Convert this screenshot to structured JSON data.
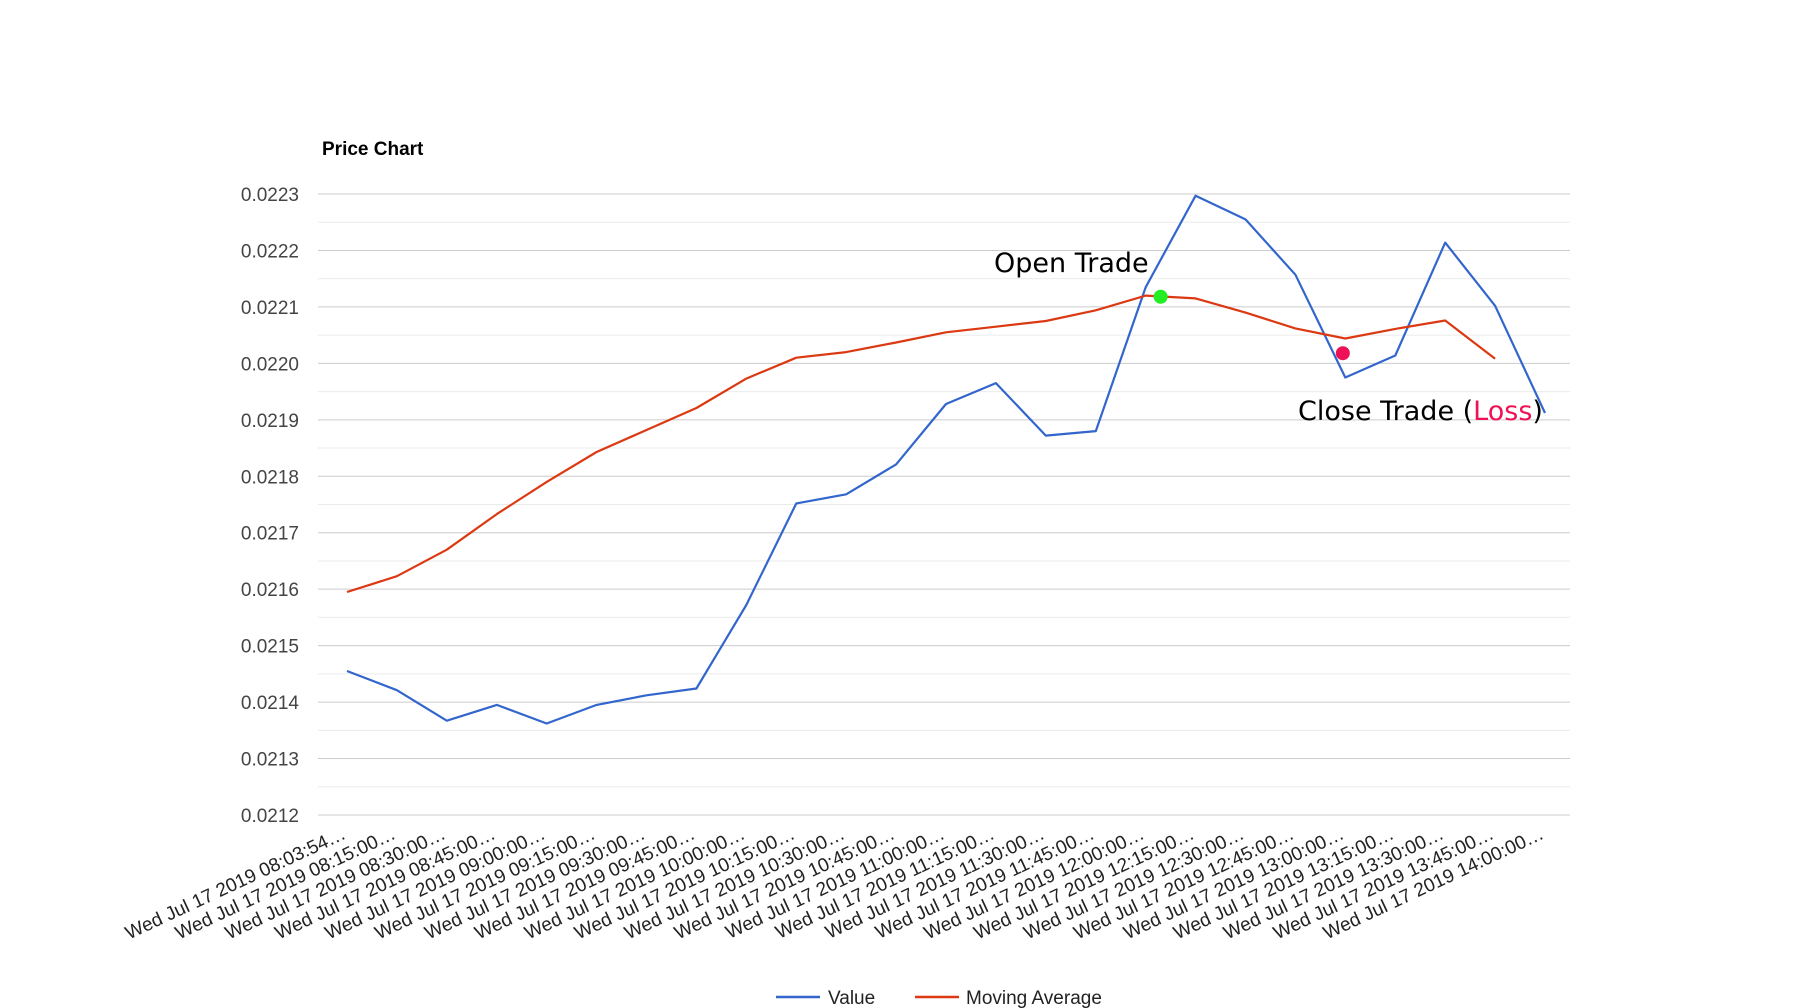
{
  "chart_data": {
    "type": "line",
    "title": "Price Chart",
    "xlabel": "",
    "ylabel": "",
    "ylim": [
      0.0212,
      0.0223
    ],
    "yticks": [
      "0.0223",
      "0.0222",
      "0.0221",
      "0.0220",
      "0.0219",
      "0.0218",
      "0.0217",
      "0.0216",
      "0.0215",
      "0.0214",
      "0.0213",
      "0.0212"
    ],
    "grid": true,
    "legend_position": "bottom",
    "categories": [
      "Wed Jul 17 2019 08:03:54…",
      "Wed Jul 17 2019 08:15:00…",
      "Wed Jul 17 2019 08:30:00…",
      "Wed Jul 17 2019 08:45:00…",
      "Wed Jul 17 2019 09:00:00…",
      "Wed Jul 17 2019 09:15:00…",
      "Wed Jul 17 2019 09:30:00…",
      "Wed Jul 17 2019 09:45:00…",
      "Wed Jul 17 2019 10:00:00…",
      "Wed Jul 17 2019 10:15:00…",
      "Wed Jul 17 2019 10:30:00…",
      "Wed Jul 17 2019 10:45:00…",
      "Wed Jul 17 2019 11:00:00…",
      "Wed Jul 17 2019 11:15:00…",
      "Wed Jul 17 2019 11:30:00…",
      "Wed Jul 17 2019 11:45:00…",
      "Wed Jul 17 2019 12:00:00…",
      "Wed Jul 17 2019 12:15:00…",
      "Wed Jul 17 2019 12:30:00…",
      "Wed Jul 17 2019 12:45:00…",
      "Wed Jul 17 2019 13:00:00…",
      "Wed Jul 17 2019 13:15:00…",
      "Wed Jul 17 2019 13:30:00…",
      "Wed Jul 17 2019 13:45:00…",
      "Wed Jul 17 2019 14:00:00…"
    ],
    "series": [
      {
        "name": "Value",
        "color": "#3366cc",
        "values": [
          0.021455,
          0.021421,
          0.021367,
          0.021395,
          0.021362,
          0.021395,
          0.021412,
          0.021424,
          0.021572,
          0.021752,
          0.021768,
          0.021821,
          0.021928,
          0.021965,
          0.021872,
          0.02188,
          0.022135,
          0.022297,
          0.022255,
          0.022157,
          0.021975,
          0.022014,
          0.022214,
          0.022102,
          0.021912
        ]
      },
      {
        "name": "Moving Average",
        "color": "#dc3912",
        "values": [
          0.021595,
          0.021623,
          0.02167,
          0.021733,
          0.02179,
          0.021843,
          0.021882,
          0.021921,
          0.021973,
          0.02201,
          0.02202,
          0.022037,
          0.022055,
          0.022065,
          0.022075,
          0.022094,
          0.02212,
          0.022115,
          0.02209,
          0.022062,
          0.022044,
          0.022061,
          0.022076,
          0.022008,
          null
        ]
      }
    ],
    "annotations": {
      "open_trade": {
        "label": "Open Trade",
        "x_index": 16.3,
        "value": 0.022118,
        "color": "#22ee22"
      },
      "close_trade": {
        "label_prefix": "Close Trade (",
        "label_loss": "Loss",
        "label_suffix": ")",
        "x_index": 19.95,
        "value": 0.022018,
        "color": "#ee1155",
        "loss_color": "#ee1155"
      }
    }
  }
}
